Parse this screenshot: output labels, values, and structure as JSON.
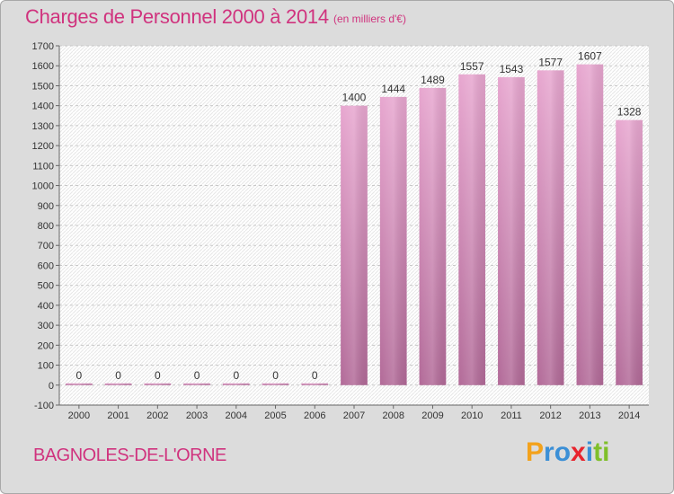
{
  "title": "Charges de Personnel 2000 à 2014",
  "subtitle": "(en milliers d'€)",
  "location": "BAGNOLES-DE-L'ORNE",
  "logo": {
    "letters": [
      "P",
      "r",
      "o",
      "x",
      "i",
      "t",
      "i"
    ],
    "colors": [
      "#f3a21c",
      "#3b8fd6",
      "#3b8fd6",
      "#e8242d",
      "#3b8fd6",
      "#7fbf2a",
      "#7fbf2a"
    ]
  },
  "chart_data": {
    "type": "bar",
    "categories": [
      "2000",
      "2001",
      "2002",
      "2003",
      "2004",
      "2005",
      "2006",
      "2007",
      "2008",
      "2009",
      "2010",
      "2011",
      "2012",
      "2013",
      "2014"
    ],
    "values": [
      0,
      0,
      0,
      0,
      0,
      0,
      0,
      1400,
      1444,
      1489,
      1557,
      1543,
      1577,
      1607,
      1328
    ],
    "title": "Charges de Personnel 2000 à 2014",
    "subtitle": "(en milliers d'€)",
    "ylim": [
      -100,
      1700
    ],
    "yticks": [
      -100,
      0,
      100,
      200,
      300,
      400,
      500,
      600,
      700,
      800,
      900,
      1000,
      1100,
      1200,
      1300,
      1400,
      1500,
      1600,
      1700
    ],
    "grid": true,
    "bar_color": "#d07aaa"
  }
}
